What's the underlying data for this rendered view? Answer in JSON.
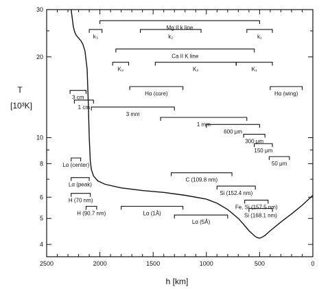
{
  "chart_data": {
    "type": "line",
    "title": "",
    "xlabel": "h [km]",
    "ylabel": "T",
    "ylabel_unit": "[10³K]",
    "x_reversed": true,
    "y_log": true,
    "xlim": [
      2500,
      0
    ],
    "ylim": [
      3.6,
      30
    ],
    "x_ticks": [
      "2500",
      "2000",
      "1500",
      "1000",
      "500",
      "0"
    ],
    "x_tick_values": [
      2500,
      2000,
      1500,
      1000,
      500,
      0
    ],
    "y_ticks": [
      "4",
      "5",
      "6",
      "8",
      "10",
      "20",
      "30"
    ],
    "y_tick_values": [
      4,
      5,
      6,
      8,
      10,
      20,
      30
    ],
    "series": [
      {
        "x": [
          2270,
          2260,
          2250,
          2240,
          2230,
          2220,
          2200,
          2180,
          2160,
          2140,
          2120,
          2110,
          2100,
          2095,
          2090,
          2080,
          2060,
          2020,
          1950,
          1800,
          1600,
          1400,
          1200,
          1000,
          900,
          800,
          700,
          650,
          600,
          560,
          540,
          520,
          500,
          480,
          450,
          400,
          300,
          200,
          100,
          0
        ],
        "y": [
          30,
          28,
          26,
          25,
          24.4,
          24,
          23.5,
          23,
          22.3,
          21,
          18,
          14,
          10,
          9,
          8.2,
          7.6,
          7.2,
          6.9,
          6.7,
          6.5,
          6.35,
          6.25,
          6.1,
          5.9,
          5.7,
          5.4,
          5.0,
          4.75,
          4.5,
          4.35,
          4.28,
          4.24,
          4.22,
          4.25,
          4.32,
          4.5,
          4.85,
          5.2,
          5.6,
          6.1
        ]
      }
    ],
    "annotations": [
      {
        "label": "Mg II k line",
        "x1": 2000,
        "x2": 500,
        "y": 27.3
      },
      {
        "label": "k₃",
        "x1": 2100,
        "x2": 1980,
        "y": 25.3
      },
      {
        "label": "k₂",
        "x1": 1620,
        "x2": 1050,
        "y": 25.3
      },
      {
        "label": "k₁",
        "x1": 620,
        "x2": 380,
        "y": 25.3
      },
      {
        "label": "Ca II K line",
        "x1": 1850,
        "x2": 550,
        "y": 21.4
      },
      {
        "label": "K₃",
        "x1": 1880,
        "x2": 1730,
        "y": 19.1
      },
      {
        "label": "K₂",
        "x1": 1480,
        "x2": 720,
        "y": 19.1
      },
      {
        "label": "K₁",
        "x1": 720,
        "x2": 380,
        "y": 19.1
      },
      {
        "label": "Hα (core)",
        "x1": 1720,
        "x2": 1220,
        "y": 15.5
      },
      {
        "label": "Hα (wing)",
        "x1": 400,
        "x2": 100,
        "y": 15.5
      },
      {
        "label": "3 cm",
        "x1": 2280,
        "x2": 2130,
        "y": 15.0
      },
      {
        "label": "1 cm",
        "x1": 2240,
        "x2": 2060,
        "y": 13.8
      },
      {
        "label": "3 mm",
        "x1": 2080,
        "x2": 1300,
        "y": 13.0
      },
      {
        "label": "1 mm",
        "x1": 1430,
        "x2": 620,
        "y": 11.9
      },
      {
        "label": "600 μm",
        "x1": 1000,
        "x2": 500,
        "y": 11.2
      },
      {
        "label": "300 μm",
        "x1": 650,
        "x2": 450,
        "y": 10.3
      },
      {
        "label": "150 μm",
        "x1": 550,
        "x2": 380,
        "y": 9.5
      },
      {
        "label": "50 μm",
        "x1": 410,
        "x2": 220,
        "y": 8.5
      },
      {
        "label": "Lα (center)",
        "x1": 2270,
        "x2": 2180,
        "y": 8.4
      },
      {
        "label": "C (109.8 nm)",
        "x1": 1330,
        "x2": 760,
        "y": 7.4
      },
      {
        "label": "Lα (peak)",
        "x1": 2270,
        "x2": 2100,
        "y": 7.1
      },
      {
        "label": "Si (152.4 nm)",
        "x1": 900,
        "x2": 540,
        "y": 6.6
      },
      {
        "label": "H (70 nm)",
        "x1": 2270,
        "x2": 2090,
        "y": 6.2
      },
      {
        "label": "Fe, Si (157.5 nm)",
        "x1": 640,
        "x2": 420,
        "y": 5.85
      },
      {
        "label": "Si (168.1 nm)",
        "x1": 600,
        "x2": 380,
        "y": 5.45
      },
      {
        "label": "H (90.7 nm)",
        "x1": 2130,
        "x2": 2030,
        "y": 5.55
      },
      {
        "label": "Lα (1Å)",
        "x1": 1800,
        "x2": 1220,
        "y": 5.55
      },
      {
        "label": "Lα (5Å)",
        "x1": 1300,
        "x2": 800,
        "y": 5.15
      }
    ],
    "grid": false,
    "legend": "none"
  }
}
